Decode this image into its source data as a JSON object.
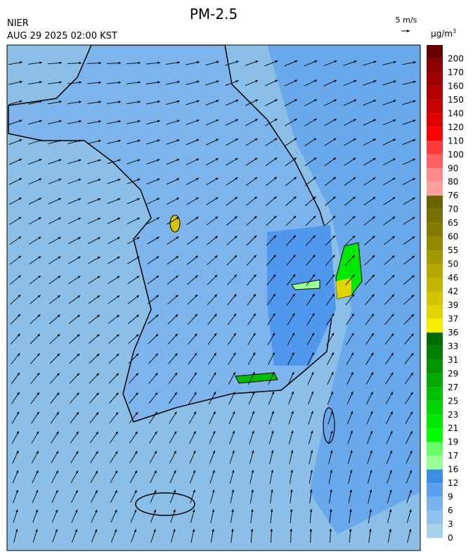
{
  "header": {
    "title": "PM-2.5",
    "agency": "NIER",
    "time": "AUG 29 2025 02:00 KST",
    "wind_scale": "5 m/s"
  },
  "colorbar": {
    "unit": {
      "base": "μg/m",
      "exp": "3"
    },
    "levels": [
      200,
      170,
      160,
      150,
      140,
      120,
      110,
      100,
      90,
      80,
      76,
      70,
      65,
      60,
      55,
      50,
      46,
      42,
      39,
      37,
      36,
      33,
      31,
      29,
      27,
      25,
      23,
      21,
      19,
      17,
      16,
      12,
      9,
      6,
      3,
      0
    ],
    "colors": [
      "#6b0000",
      "#8b0000",
      "#a00000",
      "#b40000",
      "#c80000",
      "#e00000",
      "#ff0000",
      "#ff3a3a",
      "#ff6060",
      "#ff8888",
      "#ff9e9e",
      "#6b6200",
      "#7a7000",
      "#857a00",
      "#938800",
      "#a39800",
      "#b3a700",
      "#c2b500",
      "#d2c400",
      "#e2d400",
      "#f5ee00",
      "#006d00",
      "#008000",
      "#009500",
      "#00aa00",
      "#00bf00",
      "#00d400",
      "#00e800",
      "#00ff00",
      "#66ff66",
      "#99ff99",
      "#3a8ee6",
      "#5aa0ec",
      "#79b2ee",
      "#8fc2ee",
      "#a6d2ec"
    ]
  }
}
